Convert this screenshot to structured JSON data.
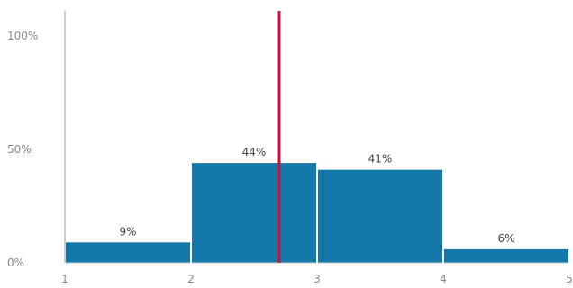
{
  "chart_data": {
    "type": "bar",
    "title": "",
    "xlabel": "",
    "ylabel": "",
    "x_ticks": [
      "1",
      "2",
      "3",
      "4",
      "5"
    ],
    "y_ticks": [
      "0%",
      "50%",
      "100%"
    ],
    "xlim": [
      1,
      5
    ],
    "ylim": [
      0,
      100
    ],
    "bins": [
      {
        "x_start": 1,
        "x_end": 2,
        "value": 9,
        "label": "9%"
      },
      {
        "x_start": 2,
        "x_end": 3,
        "value": 44,
        "label": "44%"
      },
      {
        "x_start": 3,
        "x_end": 4,
        "value": 41,
        "label": "41%"
      },
      {
        "x_start": 4,
        "x_end": 5,
        "value": 6,
        "label": "6%"
      }
    ],
    "reference_line": {
      "x": 2.7,
      "color": "#d0103a"
    },
    "bar_color": "#1479a8",
    "grid": false
  }
}
